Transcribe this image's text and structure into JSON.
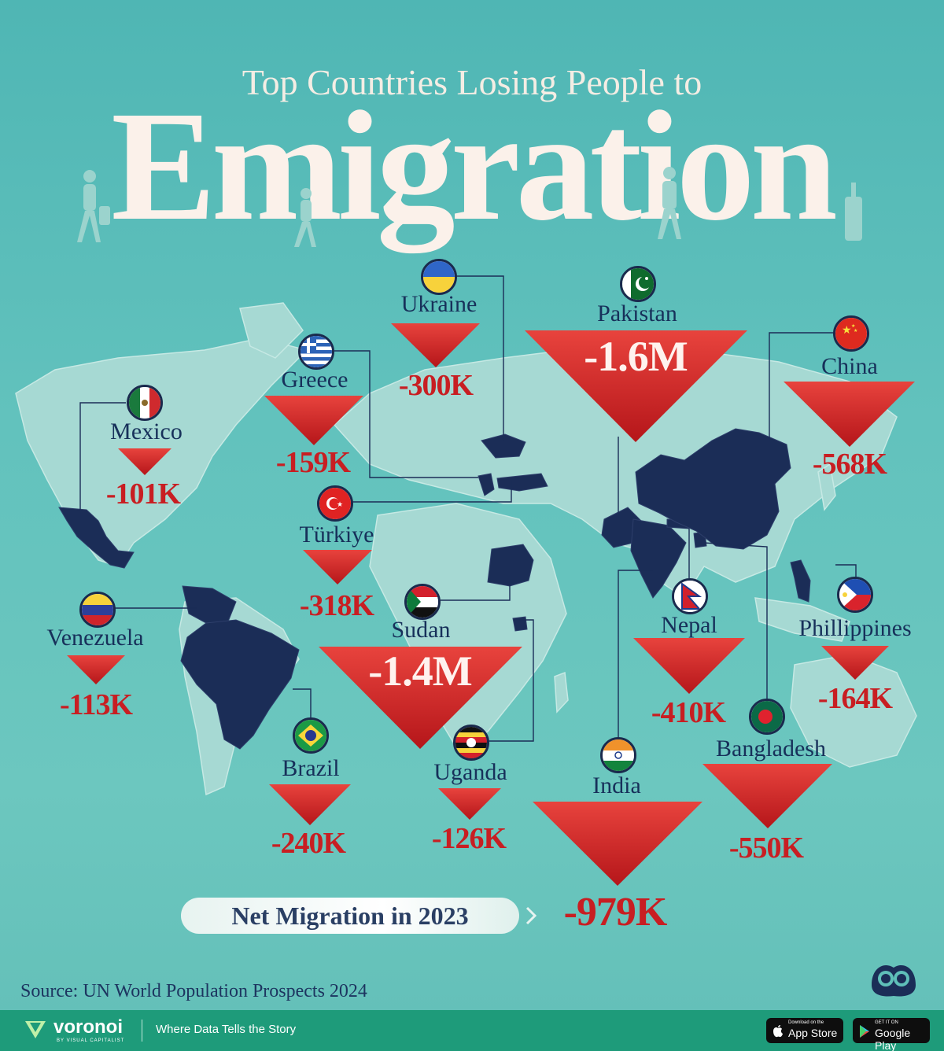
{
  "header": {
    "subtitle": "Top Countries Losing People to",
    "title": "Emigration"
  },
  "legend": {
    "label": "Net Migration in 2023"
  },
  "source": "Source: UN World Population Prospects 2024",
  "footer": {
    "brand": "voronoi",
    "brand_sub": "BY VISUAL CAPITALIST",
    "tagline": "Where Data Tells the Story",
    "app_store_small": "Download on the",
    "app_store_large": "App Store",
    "google_play_small": "GET IT ON",
    "google_play_large": "Google Play"
  },
  "colors": {
    "background": "#5fbfb9",
    "land": "#a6d9d3",
    "highlight_land": "#1b2d57",
    "triangle": "#c91f23",
    "value_text": "#c81e22",
    "name_text": "#17305a",
    "footer": "#1e9b7a"
  },
  "countries": [
    {
      "name": "Pakistan",
      "value": "-1.6M",
      "net_migration": -1600000,
      "flag_icon": "pakistan-flag-icon"
    },
    {
      "name": "Sudan",
      "value": "-1.4M",
      "net_migration": -1400000,
      "flag_icon": "sudan-flag-icon"
    },
    {
      "name": "India",
      "value": "-979K",
      "net_migration": -979000,
      "flag_icon": "india-flag-icon"
    },
    {
      "name": "China",
      "value": "-568K",
      "net_migration": -568000,
      "flag_icon": "china-flag-icon"
    },
    {
      "name": "Bangladesh",
      "value": "-550K",
      "net_migration": -550000,
      "flag_icon": "bangladesh-flag-icon"
    },
    {
      "name": "Nepal",
      "value": "-410K",
      "net_migration": -410000,
      "flag_icon": "nepal-flag-icon"
    },
    {
      "name": "Türkiye",
      "value": "-318K",
      "net_migration": -318000,
      "flag_icon": "turkiye-flag-icon"
    },
    {
      "name": "Ukraine",
      "value": "-300K",
      "net_migration": -300000,
      "flag_icon": "ukraine-flag-icon"
    },
    {
      "name": "Brazil",
      "value": "-240K",
      "net_migration": -240000,
      "flag_icon": "brazil-flag-icon"
    },
    {
      "name": "Phillippines",
      "value": "-164K",
      "net_migration": -164000,
      "flag_icon": "philippines-flag-icon"
    },
    {
      "name": "Greece",
      "value": "-159K",
      "net_migration": -159000,
      "flag_icon": "greece-flag-icon"
    },
    {
      "name": "Uganda",
      "value": "-126K",
      "net_migration": -126000,
      "flag_icon": "uganda-flag-icon"
    },
    {
      "name": "Venezuela",
      "value": "-113K",
      "net_migration": -113000,
      "flag_icon": "venezuela-flag-icon"
    },
    {
      "name": "Mexico",
      "value": "-101K",
      "net_migration": -101000,
      "flag_icon": "mexico-flag-icon"
    }
  ]
}
